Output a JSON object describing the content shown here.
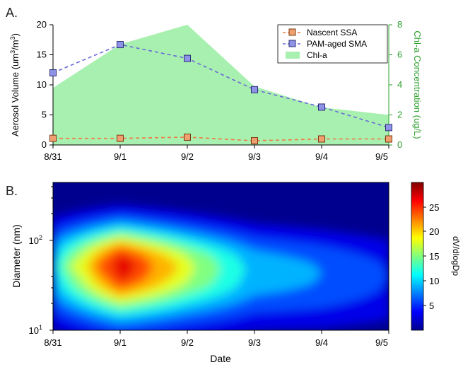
{
  "chart_data": [
    {
      "type": "line",
      "panel_label": "A.",
      "x": [
        "8/31",
        "9/1",
        "9/2",
        "9/3",
        "9/4",
        "9/5"
      ],
      "ylabel": "Aerosol Volume (um³/m³)",
      "ylabel_parts": {
        "a": "Aerosol Volume (um",
        "sup1": "3",
        "b": "/m",
        "sup2": "3",
        "c": ")"
      },
      "ylim": [
        0,
        20
      ],
      "yticks": [
        "0",
        "5",
        "10",
        "15",
        "20"
      ],
      "y2label": "Chl-a Concentration (ug/L)",
      "y2lim": [
        0,
        8
      ],
      "y2ticks": [
        "0",
        "2",
        "4",
        "6",
        "8"
      ],
      "legend_position": "top-right",
      "series": [
        {
          "name": "Nascent SSA",
          "axis": "left",
          "values": [
            1.1,
            1.1,
            1.3,
            0.7,
            1.0,
            1.0
          ],
          "color": "#f07840",
          "marker_color": "#f0a070"
        },
        {
          "name": "PAM-aged SMA",
          "axis": "left",
          "values": [
            12.0,
            16.7,
            14.4,
            9.2,
            6.3,
            2.9
          ],
          "color": "#6a68d8",
          "marker_color": "#8f93e6"
        },
        {
          "name": "Chl-a",
          "axis": "right",
          "type": "area",
          "values": [
            3.8,
            6.7,
            8.0,
            3.9,
            2.5,
            2.0
          ],
          "color": "#a8f0b0"
        }
      ],
      "right_axis_color": "#2ea02e"
    },
    {
      "type": "heatmap",
      "panel_label": "B.",
      "x": [
        "8/31",
        "9/1",
        "9/2",
        "9/3",
        "9/4",
        "9/5"
      ],
      "xlabel": "Date",
      "ylabel": "Diameter (nm)",
      "y_scale": "log",
      "ylim": [
        10,
        400
      ],
      "yticks": [
        {
          "base": "10",
          "exp": "1"
        },
        {
          "base": "10",
          "exp": "2"
        }
      ],
      "colorbar": {
        "label": "dV/dlogDp",
        "range": [
          0,
          30
        ],
        "ticks": [
          "5",
          "10",
          "15",
          "20",
          "25"
        ]
      },
      "peak_diameter_nm": [
        50,
        50,
        48,
        45,
        42,
        40
      ],
      "peak_value": [
        12,
        29,
        19,
        11,
        9,
        6
      ]
    }
  ]
}
